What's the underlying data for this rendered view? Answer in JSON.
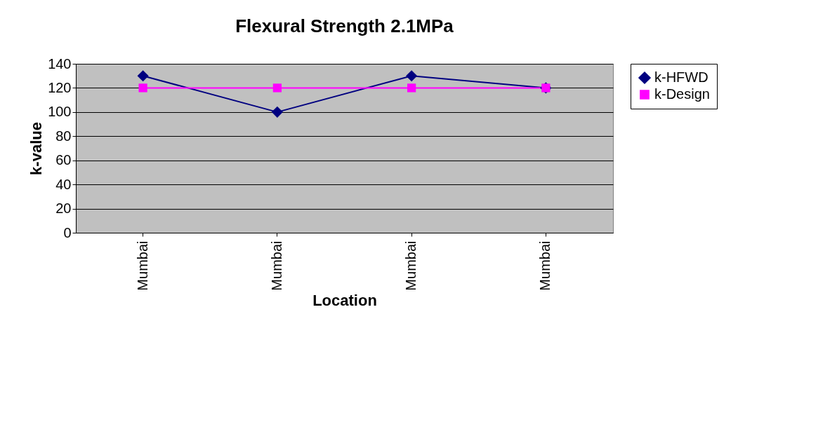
{
  "chart_data": {
    "type": "line",
    "title": "Flexural Strength 2.1MPa",
    "xlabel": "Location",
    "ylabel": "k-value",
    "categories": [
      "Mumbai",
      "Mumbai",
      "Mumbai",
      "Mumbai"
    ],
    "series": [
      {
        "name": "k-HFWD",
        "color": "#000080",
        "marker": "diamond",
        "values": [
          130,
          100,
          130,
          120
        ]
      },
      {
        "name": "k-Design",
        "color": "#ff00ff",
        "marker": "square",
        "values": [
          120,
          120,
          120,
          120
        ]
      }
    ],
    "ylim": [
      0,
      140
    ],
    "yticks": [
      0,
      20,
      40,
      60,
      80,
      100,
      120,
      140
    ],
    "grid": "y",
    "legend": "right",
    "line_style": "solid"
  }
}
